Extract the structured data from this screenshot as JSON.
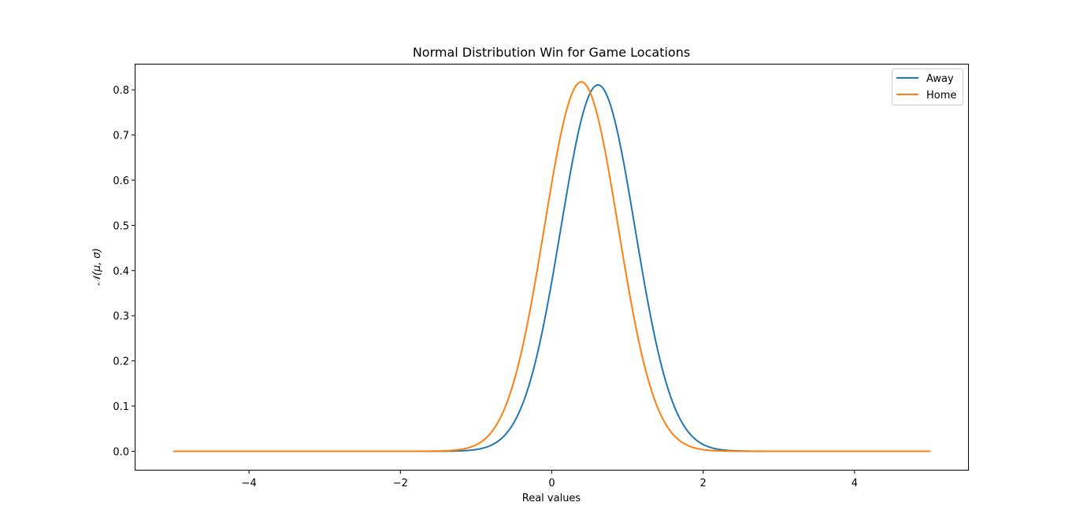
{
  "chart_data": {
    "type": "line",
    "title": "Normal Distribution Win for Game Locations",
    "xlabel": "Real values",
    "ylabel": "𝒩(μ, σ)",
    "xlim": [
      -5.5,
      5.5
    ],
    "ylim": [
      -0.041,
      0.856
    ],
    "x_range": [
      -5,
      5
    ],
    "xticks": [
      -4,
      -2,
      0,
      2,
      4
    ],
    "xtick_labels": [
      "−4",
      "−2",
      "0",
      "2",
      "4"
    ],
    "yticks": [
      0.0,
      0.1,
      0.2,
      0.3,
      0.4,
      0.5,
      0.6,
      0.7,
      0.8
    ],
    "ytick_labels": [
      "0.0",
      "0.1",
      "0.2",
      "0.3",
      "0.4",
      "0.5",
      "0.6",
      "0.7",
      "0.8"
    ],
    "grid": false,
    "legend_position": "top-right",
    "series": [
      {
        "name": "Away",
        "distribution": "normal",
        "mu": 0.61,
        "sigma": 0.492,
        "color": "#1f77b4"
      },
      {
        "name": "Home",
        "distribution": "normal",
        "mu": 0.39,
        "sigma": 0.488,
        "color": "#ff7f0e"
      }
    ]
  }
}
